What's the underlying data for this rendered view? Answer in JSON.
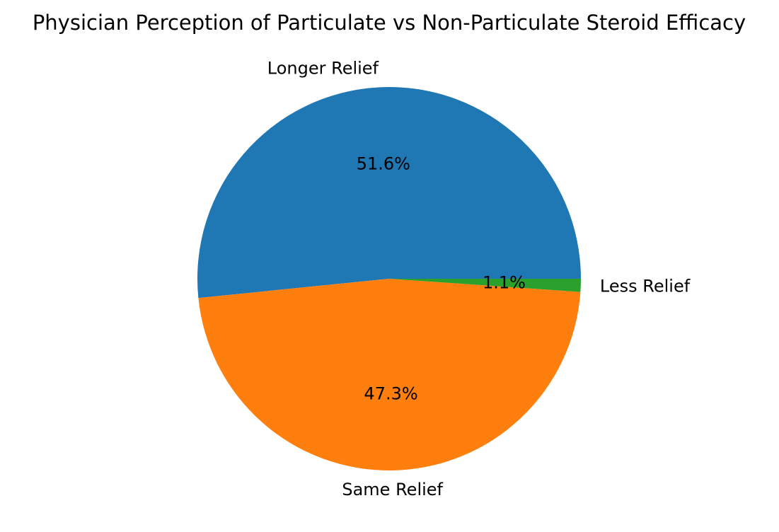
{
  "chart_data": {
    "type": "pie",
    "title": "Physician Perception of Particulate vs Non-Particulate Steroid Efficacy",
    "categories": [
      "Longer Relief",
      "Same Relief",
      "Less Relief"
    ],
    "values": [
      51.6,
      47.3,
      1.1
    ],
    "percent_labels": [
      "51.6%",
      "47.3%",
      "1.1%"
    ],
    "colors": [
      "#1f77b4",
      "#ff7f0e",
      "#2ca02c"
    ],
    "start_angle_deg": 0,
    "direction": "counterclockwise",
    "legend": "none"
  }
}
